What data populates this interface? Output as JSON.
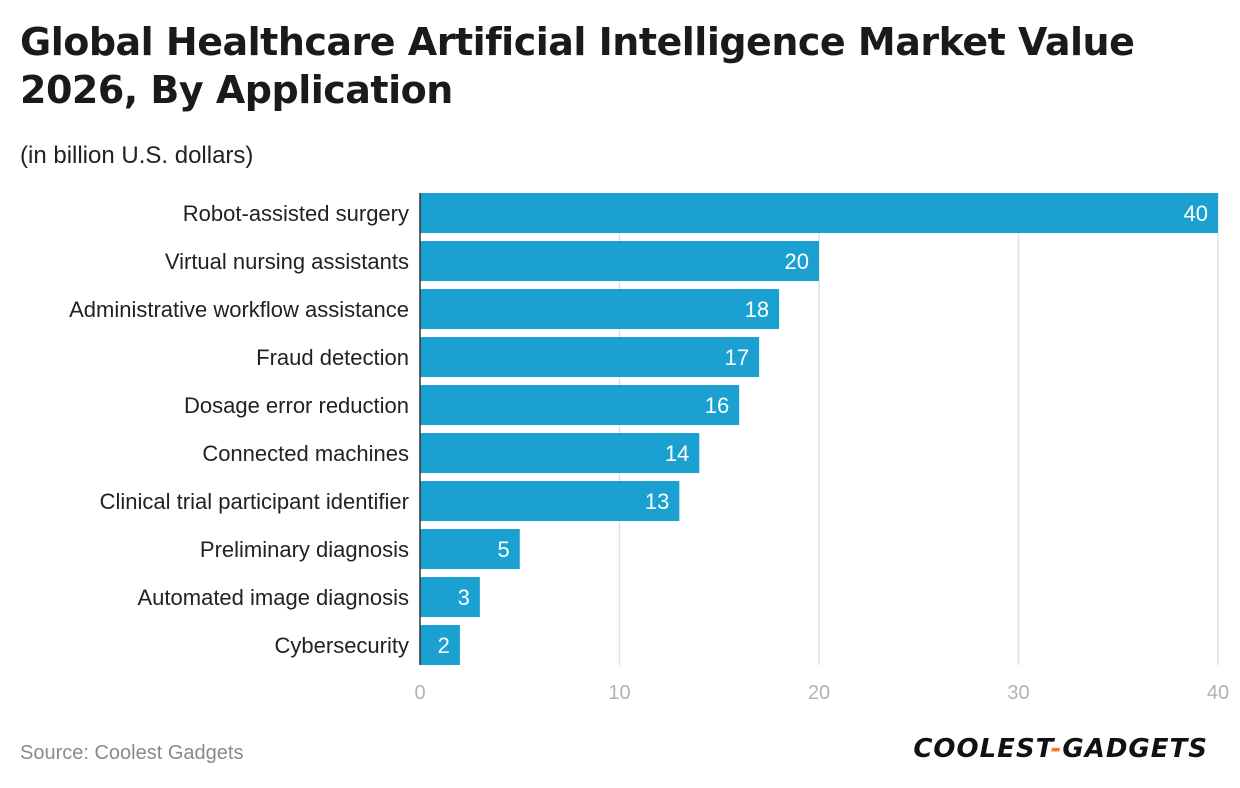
{
  "header": {
    "title": "Global Healthcare Artificial Intelligence Market Value 2026, By Application",
    "subtitle": "(in billion U.S. dollars)"
  },
  "footer": {
    "source": "Source: Coolest Gadgets",
    "logo_left": "COOLEST",
    "logo_dash": "-",
    "logo_right": "GADGETS"
  },
  "colors": {
    "bar": "#1ba1d1",
    "grid": "#e2e2e2",
    "axis_tick_label": "#b3b3b3",
    "logo_accent": "#f07b2c"
  },
  "chart_data": {
    "type": "bar",
    "orientation": "horizontal",
    "title": "Global Healthcare Artificial Intelligence Market Value 2026, By Application",
    "subtitle": "(in billion U.S. dollars)",
    "categories": [
      "Robot-assisted surgery",
      "Virtual nursing assistants",
      "Administrative workflow assistance",
      "Fraud detection",
      "Dosage error reduction",
      "Connected machines",
      "Clinical trial participant identifier",
      "Preliminary diagnosis",
      "Automated image diagnosis",
      "Cybersecurity"
    ],
    "values": [
      40,
      20,
      18,
      17,
      16,
      14,
      13,
      5,
      3,
      2
    ],
    "xlim": [
      0,
      40
    ],
    "xticks": [
      0,
      10,
      20,
      30,
      40
    ],
    "grid": true,
    "data_labels": true
  }
}
